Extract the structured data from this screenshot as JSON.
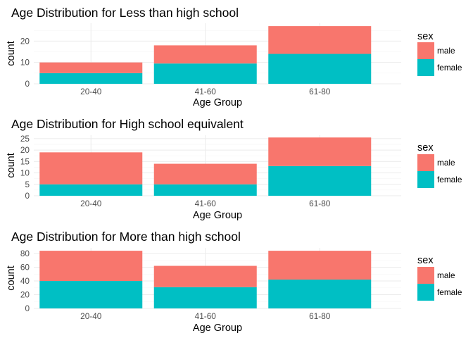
{
  "chart_data": [
    {
      "type": "bar",
      "stacked": true,
      "title": "Age Distribution for Less than high school",
      "xlabel": "Age Group",
      "ylabel": "count",
      "categories": [
        "20-40",
        "41-60",
        "61-80"
      ],
      "series": [
        {
          "name": "female",
          "values": [
            5,
            9.5,
            14
          ]
        },
        {
          "name": "male",
          "values": [
            5,
            8.5,
            13
          ]
        }
      ],
      "ylim": [
        0,
        28.35
      ],
      "yticks": [
        0,
        10,
        20
      ],
      "legend_title": "sex",
      "legend_position": "right",
      "grid": true
    },
    {
      "type": "bar",
      "stacked": true,
      "title": "Age Distribution for High school equivalent",
      "xlabel": "Age Group",
      "ylabel": "count",
      "categories": [
        "20-40",
        "41-60",
        "61-80"
      ],
      "series": [
        {
          "name": "female",
          "values": [
            5,
            5,
            13
          ]
        },
        {
          "name": "male",
          "values": [
            14,
            9,
            12.5
          ]
        }
      ],
      "ylim": [
        0,
        26.5
      ],
      "yticks": [
        0,
        5,
        10,
        15,
        20,
        25
      ],
      "legend_title": "sex",
      "legend_position": "right",
      "grid": true
    },
    {
      "type": "bar",
      "stacked": true,
      "title": "Age Distribution for More than high school",
      "xlabel": "Age Group",
      "ylabel": "count",
      "categories": [
        "20-40",
        "41-60",
        "61-80"
      ],
      "series": [
        {
          "name": "female",
          "values": [
            40,
            31,
            42
          ]
        },
        {
          "name": "male",
          "values": [
            44,
            31,
            42
          ]
        }
      ],
      "ylim": [
        0,
        88.2
      ],
      "yticks": [
        0,
        20,
        40,
        60,
        80
      ],
      "legend_title": "sex",
      "legend_position": "right",
      "grid": true
    }
  ],
  "colors": {
    "female": "#00BFC4",
    "male": "#F8766D",
    "grid_major": "#ebebeb",
    "grid_minor": "#f5f5f5"
  }
}
